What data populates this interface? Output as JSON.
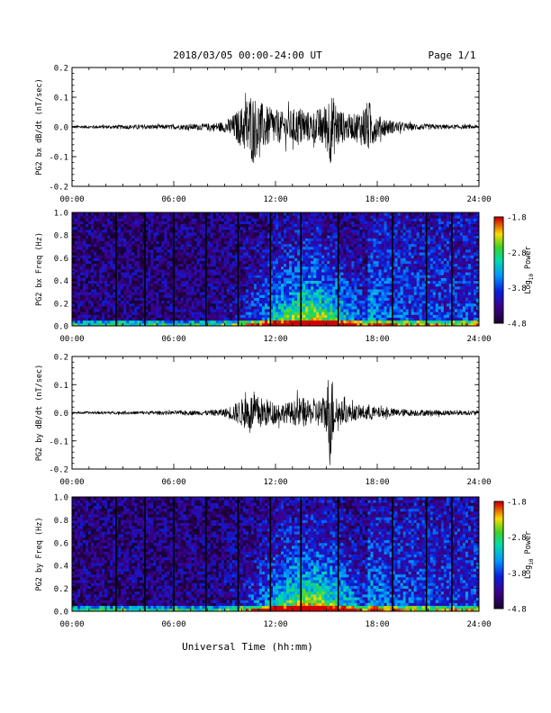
{
  "header": {
    "title": "2018/03/05  00:00-24:00 UT",
    "page": "Page 1/1"
  },
  "xaxis": {
    "ticks": [
      "00:00",
      "06:00",
      "12:00",
      "18:00",
      "24:00"
    ],
    "label": "Universal Time (hh:mm)",
    "range_hours": [
      0,
      24
    ]
  },
  "colorbar": {
    "ticks": [
      "-1.8",
      "-2.8",
      "-3.8",
      "-4.8"
    ],
    "label_main": "Log",
    "label_sub": "10",
    "label_tail": " Power",
    "range": [
      -4.8,
      -1.8
    ]
  },
  "colors": {
    "background": "#ffffff",
    "axes": "#000000",
    "trace": "#000000",
    "spectrogram_low": "#1a0033",
    "spectrogram_high": "#cc0000"
  },
  "chart_data": [
    {
      "type": "line",
      "ylabel": "PG2 bx dB/dt (nT/sec)",
      "yticks": [
        "0.2",
        "0.1",
        "0.0",
        "-0.1",
        "-0.2"
      ],
      "ylim": [
        -0.2,
        0.2
      ],
      "xlim": [
        0,
        24
      ],
      "series": [
        {
          "x": [
            0,
            2,
            4,
            6,
            8,
            9,
            9.5,
            10,
            10.5,
            11,
            11.5,
            12,
            12.5,
            13,
            13.5,
            14,
            14.5,
            15,
            15.2,
            15.5,
            16,
            16.5,
            17,
            17.5,
            18,
            19,
            20,
            22,
            24
          ],
          "envelope": [
            0.005,
            0.006,
            0.008,
            0.008,
            0.012,
            0.018,
            0.04,
            0.07,
            0.12,
            0.09,
            0.07,
            0.06,
            0.05,
            0.06,
            0.07,
            0.05,
            0.06,
            0.08,
            0.13,
            0.09,
            0.05,
            0.04,
            0.06,
            0.09,
            0.04,
            0.02,
            0.012,
            0.008,
            0.006
          ]
        }
      ]
    },
    {
      "type": "heatmap",
      "ylabel": "PG2 bx Freq (Hz)",
      "yticks": [
        "1.0",
        "0.8",
        "0.6",
        "0.4",
        "0.2",
        "0.0"
      ],
      "ylim": [
        0,
        1.0
      ],
      "xlim": [
        0,
        24
      ],
      "zlim": [
        -4.8,
        -1.8
      ],
      "gap_hours": [
        2.6,
        4.3,
        6.0,
        7.9,
        9.8,
        11.7,
        13.5,
        15.7,
        18.9,
        20.9,
        22.4
      ]
    },
    {
      "type": "line",
      "ylabel": "PG2 by dB/dt (nT/sec)",
      "yticks": [
        "0.2",
        "0.1",
        "0.0",
        "-0.1",
        "-0.2"
      ],
      "ylim": [
        -0.2,
        0.2
      ],
      "xlim": [
        0,
        24
      ],
      "series": [
        {
          "x": [
            0,
            2,
            4,
            6,
            8,
            9,
            9.5,
            10,
            10.5,
            11,
            11.5,
            12,
            12.5,
            13,
            13.5,
            14,
            14.5,
            15,
            15.2,
            15.5,
            16,
            16.5,
            17,
            17.5,
            18,
            19,
            20,
            22,
            24
          ],
          "envelope": [
            0.004,
            0.005,
            0.006,
            0.007,
            0.009,
            0.015,
            0.03,
            0.05,
            0.07,
            0.06,
            0.05,
            0.04,
            0.035,
            0.04,
            0.06,
            0.04,
            0.05,
            0.07,
            0.2,
            0.06,
            0.04,
            0.03,
            0.025,
            0.03,
            0.02,
            0.015,
            0.012,
            0.01,
            0.008
          ]
        }
      ]
    },
    {
      "type": "heatmap",
      "ylabel": "PG2 by Freq (Hz)",
      "yticks": [
        "1.0",
        "0.8",
        "0.6",
        "0.4",
        "0.2",
        "0.0"
      ],
      "ylim": [
        0,
        1.0
      ],
      "xlim": [
        0,
        24
      ],
      "zlim": [
        -4.8,
        -1.8
      ],
      "gap_hours": [
        2.6,
        4.3,
        6.0,
        7.9,
        9.8,
        11.7,
        13.5,
        15.7,
        18.9,
        20.9,
        22.4
      ]
    }
  ]
}
